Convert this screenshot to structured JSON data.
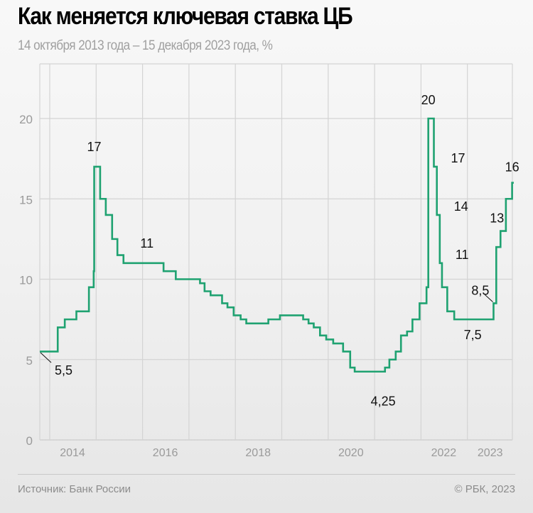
{
  "header": {
    "title": "Как меняется ключевая ставка ЦБ",
    "subtitle": "14 октября 2013 года – 15 декабря 2023 года, %"
  },
  "footer": {
    "source": "Источник: Банк России",
    "copyright": "© РБК, 2023"
  },
  "colors": {
    "line": "#1fa271",
    "grid": "#d4d4d4",
    "tick_text": "#9a9a9a",
    "annotation_text": "#111111"
  },
  "chart_data": {
    "type": "line",
    "step": true,
    "title": "Как меняется ключевая ставка ЦБ",
    "subtitle": "14 октября 2013 года – 15 декабря 2023 года, %",
    "xlabel": "",
    "ylabel": "%",
    "ylim": [
      0,
      23.4
    ],
    "yticks": [
      0,
      5,
      10,
      15,
      20
    ],
    "xtick_labels": [
      {
        "label": "2014",
        "x": 2014.0
      },
      {
        "label": "2016",
        "x": 2016.0
      },
      {
        "label": "2018",
        "x": 2018.0
      },
      {
        "label": "2020",
        "x": 2020.0
      },
      {
        "label": "2022",
        "x": 2022.0
      },
      {
        "label": "2023",
        "x": 2023.0
      }
    ],
    "grid": true,
    "series": [
      {
        "name": "Ключевая ставка",
        "points": [
          [
            "2013-10-14",
            5.5
          ],
          [
            "2014-03-03",
            7.0
          ],
          [
            "2014-04-28",
            7.5
          ],
          [
            "2014-07-28",
            8.0
          ],
          [
            "2014-11-05",
            9.5
          ],
          [
            "2014-12-12",
            10.5
          ],
          [
            "2014-12-16",
            17.0
          ],
          [
            "2015-02-02",
            15.0
          ],
          [
            "2015-03-16",
            14.0
          ],
          [
            "2015-05-05",
            12.5
          ],
          [
            "2015-06-16",
            11.5
          ],
          [
            "2015-08-03",
            11.0
          ],
          [
            "2016-06-14",
            10.5
          ],
          [
            "2016-09-19",
            10.0
          ],
          [
            "2017-03-27",
            9.75
          ],
          [
            "2017-05-02",
            9.25
          ],
          [
            "2017-06-19",
            9.0
          ],
          [
            "2017-09-18",
            8.5
          ],
          [
            "2017-10-30",
            8.25
          ],
          [
            "2017-12-18",
            7.75
          ],
          [
            "2018-02-12",
            7.5
          ],
          [
            "2018-03-26",
            7.25
          ],
          [
            "2018-09-17",
            7.5
          ],
          [
            "2018-12-17",
            7.75
          ],
          [
            "2019-06-17",
            7.5
          ],
          [
            "2019-07-29",
            7.25
          ],
          [
            "2019-09-09",
            7.0
          ],
          [
            "2019-10-28",
            6.5
          ],
          [
            "2019-12-16",
            6.25
          ],
          [
            "2020-02-10",
            6.0
          ],
          [
            "2020-04-27",
            5.5
          ],
          [
            "2020-06-22",
            4.5
          ],
          [
            "2020-07-27",
            4.25
          ],
          [
            "2021-03-22",
            4.5
          ],
          [
            "2021-04-26",
            5.0
          ],
          [
            "2021-06-15",
            5.5
          ],
          [
            "2021-07-26",
            6.5
          ],
          [
            "2021-09-13",
            6.75
          ],
          [
            "2021-10-25",
            7.5
          ],
          [
            "2021-12-20",
            8.5
          ],
          [
            "2022-02-14",
            9.5
          ],
          [
            "2022-02-28",
            20.0
          ],
          [
            "2022-04-11",
            17.0
          ],
          [
            "2022-05-04",
            14.0
          ],
          [
            "2022-05-27",
            11.0
          ],
          [
            "2022-06-14",
            9.5
          ],
          [
            "2022-07-25",
            8.0
          ],
          [
            "2022-09-19",
            7.5
          ],
          [
            "2023-07-24",
            8.5
          ],
          [
            "2023-08-15",
            12.0
          ],
          [
            "2023-09-18",
            13.0
          ],
          [
            "2023-10-30",
            15.0
          ],
          [
            "2023-12-18",
            16.0
          ],
          [
            "2023-12-31",
            16.0
          ]
        ]
      }
    ],
    "annotations": [
      {
        "text": "5,5",
        "x": "2013-10-14",
        "value": 5.5
      },
      {
        "text": "17",
        "x": "2014-12-16",
        "value": 17
      },
      {
        "text": "11",
        "x": "2015-08-03",
        "value": 11
      },
      {
        "text": "4,25",
        "x": "2020-07-27",
        "value": 4.25
      },
      {
        "text": "20",
        "x": "2022-02-28",
        "value": 20
      },
      {
        "text": "17",
        "x": "2022-04-11",
        "value": 17
      },
      {
        "text": "14",
        "x": "2022-05-04",
        "value": 14
      },
      {
        "text": "11",
        "x": "2022-05-27",
        "value": 11
      },
      {
        "text": "7,5",
        "x": "2022-09-19",
        "value": 7.5
      },
      {
        "text": "8,5",
        "x": "2023-07-24",
        "value": 8.5
      },
      {
        "text": "13",
        "x": "2023-09-18",
        "value": 13
      },
      {
        "text": "16",
        "x": "2023-12-18",
        "value": 16
      }
    ]
  }
}
